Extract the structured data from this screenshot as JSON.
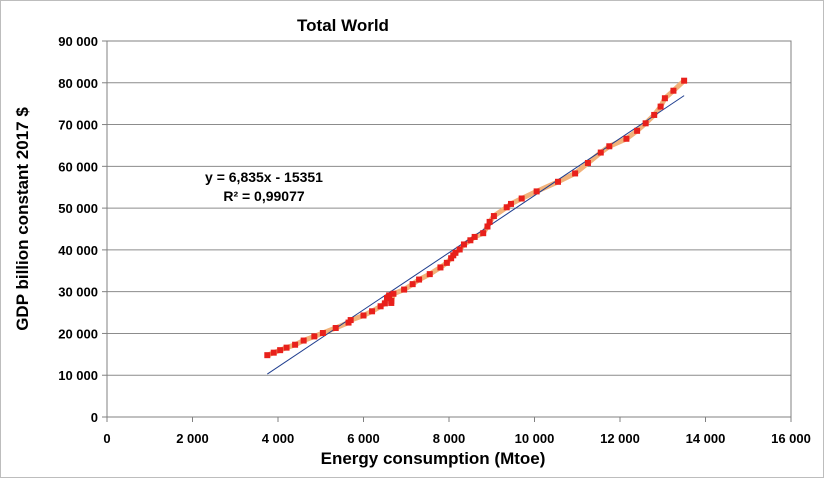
{
  "chart_data": {
    "type": "scatter",
    "title": "Total World",
    "xlabel": "Energy consumption (Mtoe)",
    "ylabel": "GDP billion constant 2017 $",
    "xlim": [
      0,
      16000
    ],
    "ylim": [
      0,
      90000
    ],
    "x_ticks": [
      0,
      2000,
      4000,
      6000,
      8000,
      10000,
      12000,
      14000,
      16000
    ],
    "x_tick_labels": [
      "0",
      "2 000",
      "4 000",
      "6 000",
      "8 000",
      "10 000",
      "12 000",
      "14 000",
      "16 000"
    ],
    "y_ticks": [
      0,
      10000,
      20000,
      30000,
      40000,
      50000,
      60000,
      70000,
      80000,
      90000
    ],
    "y_tick_labels": [
      "0",
      "10 000",
      "20 000",
      "30 000",
      "40 000",
      "50 000",
      "60 000",
      "70 000",
      "80 000",
      "90 000"
    ],
    "grid": "horizontal",
    "series": [
      {
        "color": "#e8201b",
        "line_color": "#f2b27a",
        "marker": "square",
        "points": [
          [
            3750,
            14800
          ],
          [
            3900,
            15400
          ],
          [
            4050,
            16000
          ],
          [
            4200,
            16600
          ],
          [
            4400,
            17300
          ],
          [
            4600,
            18300
          ],
          [
            4850,
            19300
          ],
          [
            5050,
            20100
          ],
          [
            5350,
            21300
          ],
          [
            5650,
            22600
          ],
          [
            5700,
            23200
          ],
          [
            6000,
            24300
          ],
          [
            6200,
            25300
          ],
          [
            6400,
            26500
          ],
          [
            6500,
            27200
          ],
          [
            6550,
            28500
          ],
          [
            6600,
            29100
          ],
          [
            6650,
            27800
          ],
          [
            6650,
            27300
          ],
          [
            6700,
            29500
          ],
          [
            6950,
            30500
          ],
          [
            7150,
            31800
          ],
          [
            7300,
            32900
          ],
          [
            7550,
            34200
          ],
          [
            7800,
            35800
          ],
          [
            7950,
            36900
          ],
          [
            8050,
            38000
          ],
          [
            8100,
            38700
          ],
          [
            8150,
            39300
          ],
          [
            8250,
            40100
          ],
          [
            8350,
            41300
          ],
          [
            8500,
            42300
          ],
          [
            8600,
            43100
          ],
          [
            8800,
            44000
          ],
          [
            8900,
            45600
          ],
          [
            8950,
            46700
          ],
          [
            9050,
            48100
          ],
          [
            9350,
            50200
          ],
          [
            9450,
            51000
          ],
          [
            9700,
            52300
          ],
          [
            10050,
            54000
          ],
          [
            10550,
            56300
          ],
          [
            10950,
            58300
          ],
          [
            11250,
            60800
          ],
          [
            11550,
            63300
          ],
          [
            11750,
            64800
          ],
          [
            12150,
            66600
          ],
          [
            12400,
            68500
          ],
          [
            12600,
            70300
          ],
          [
            12800,
            72300
          ],
          [
            12950,
            74300
          ],
          [
            13050,
            76300
          ],
          [
            13250,
            78100
          ],
          [
            13500,
            80500
          ]
        ]
      }
    ],
    "trendline": {
      "color": "#1f3e8f",
      "slope": 6.835,
      "intercept": -15351,
      "x_range": [
        3750,
        13500
      ],
      "equation_label": "y = 6,835x - 15351",
      "r2_label": "R² = 0,99077"
    }
  }
}
